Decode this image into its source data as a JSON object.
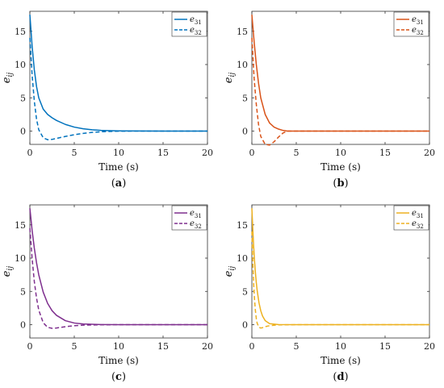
{
  "chart_data": [
    {
      "type": "line",
      "caption": "(a)",
      "caption_letter": "a",
      "xlabel": "Time (s)",
      "ylabel_base": "e",
      "ylabel_sub": "ij",
      "xlim": [
        0,
        20
      ],
      "ylim": [
        -2,
        18
      ],
      "xticks": [
        0,
        5,
        10,
        15,
        20
      ],
      "yticks": [
        0,
        5,
        10,
        15
      ],
      "legend_position": "top-right",
      "color": "#0072BD",
      "series": [
        {
          "name": "e31",
          "name_base": "e",
          "name_sub": "31",
          "style": "solid",
          "x": [
            0,
            0.25,
            0.5,
            0.75,
            1,
            1.5,
            2,
            2.5,
            3,
            4,
            5,
            6,
            7,
            8,
            10,
            12,
            15,
            20
          ],
          "y": [
            17.5,
            12.8,
            9.2,
            6.7,
            5.0,
            3.3,
            2.5,
            2.0,
            1.6,
            1.0,
            0.6,
            0.35,
            0.2,
            0.1,
            0.03,
            0.01,
            0,
            0
          ]
        },
        {
          "name": "e32",
          "name_base": "e",
          "name_sub": "32",
          "style": "dashed",
          "x": [
            0,
            0.25,
            0.5,
            0.75,
            1,
            1.5,
            2,
            2.5,
            3,
            4,
            5,
            6,
            7,
            8,
            10,
            12,
            15,
            20
          ],
          "y": [
            14.0,
            8.5,
            4.5,
            1.8,
            0.2,
            -1.0,
            -1.3,
            -1.25,
            -1.1,
            -0.8,
            -0.55,
            -0.35,
            -0.2,
            -0.1,
            -0.02,
            0,
            0,
            0
          ]
        }
      ]
    },
    {
      "type": "line",
      "caption": "(b)",
      "caption_letter": "b",
      "xlabel": "Time (s)",
      "ylabel_base": "e",
      "ylabel_sub": "ij",
      "xlim": [
        0,
        20
      ],
      "ylim": [
        -2,
        18
      ],
      "xticks": [
        0,
        5,
        10,
        15,
        20
      ],
      "yticks": [
        0,
        5,
        10,
        15
      ],
      "legend_position": "top-right",
      "color": "#D95319",
      "series": [
        {
          "name": "e31",
          "name_base": "e",
          "name_sub": "31",
          "style": "solid",
          "x": [
            0,
            0.25,
            0.5,
            0.75,
            1,
            1.5,
            2,
            2.5,
            3,
            3.5,
            4,
            5,
            10,
            15,
            20
          ],
          "y": [
            17.5,
            13.5,
            10.0,
            7.2,
            5.0,
            2.5,
            1.2,
            0.6,
            0.3,
            0.1,
            0,
            0,
            0,
            0,
            0
          ]
        },
        {
          "name": "e32",
          "name_base": "e",
          "name_sub": "32",
          "style": "dashed",
          "x": [
            0,
            0.25,
            0.5,
            0.75,
            1,
            1.5,
            2,
            2.5,
            3,
            3.5,
            4,
            5,
            10,
            20
          ],
          "y": [
            14.0,
            8.0,
            4.0,
            1.0,
            -0.8,
            -2.0,
            -2.1,
            -1.6,
            -0.9,
            -0.3,
            0,
            0,
            0,
            0
          ]
        }
      ]
    },
    {
      "type": "line",
      "caption": "(c)",
      "caption_letter": "c",
      "xlabel": "Time (s)",
      "ylabel_base": "e",
      "ylabel_sub": "ij",
      "xlim": [
        0,
        20
      ],
      "ylim": [
        -2,
        18
      ],
      "xticks": [
        0,
        5,
        10,
        15,
        20
      ],
      "yticks": [
        0,
        5,
        10,
        15
      ],
      "legend_position": "top-right",
      "color": "#7E2F8E",
      "series": [
        {
          "name": "e31",
          "name_base": "e",
          "name_sub": "31",
          "style": "solid",
          "x": [
            0,
            0.25,
            0.5,
            0.75,
            1,
            1.5,
            2,
            2.5,
            3,
            4,
            5,
            6,
            8,
            10,
            15,
            20
          ],
          "y": [
            17.5,
            14.2,
            11.5,
            9.3,
            7.5,
            4.9,
            3.2,
            2.1,
            1.4,
            0.6,
            0.25,
            0.1,
            0.02,
            0,
            0,
            0
          ]
        },
        {
          "name": "e32",
          "name_base": "e",
          "name_sub": "32",
          "style": "dashed",
          "x": [
            0,
            0.25,
            0.5,
            0.75,
            1,
            1.5,
            2,
            2.5,
            3,
            4,
            5,
            6,
            8,
            10,
            15,
            20
          ],
          "y": [
            14.5,
            10.0,
            6.5,
            4.0,
            2.2,
            0.3,
            -0.4,
            -0.55,
            -0.5,
            -0.3,
            -0.15,
            -0.07,
            -0.02,
            0,
            0,
            0
          ]
        }
      ]
    },
    {
      "type": "line",
      "caption": "(d)",
      "caption_letter": "d",
      "xlabel": "Time (s)",
      "ylabel_base": "e",
      "ylabel_sub": "ij",
      "xlim": [
        0,
        20
      ],
      "ylim": [
        -2,
        18
      ],
      "xticks": [
        0,
        5,
        10,
        15,
        20
      ],
      "yticks": [
        0,
        5,
        10,
        15
      ],
      "legend_position": "top-right",
      "color": "#EDB120",
      "series": [
        {
          "name": "e31",
          "name_base": "e",
          "name_sub": "31",
          "style": "solid",
          "x": [
            0,
            0.1,
            0.2,
            0.3,
            0.4,
            0.5,
            0.6,
            0.8,
            1.0,
            1.2,
            1.5,
            2,
            3,
            5,
            20
          ],
          "y": [
            17.5,
            14.5,
            11.8,
            9.6,
            7.8,
            6.3,
            5.1,
            3.3,
            2.1,
            1.3,
            0.6,
            0.15,
            0.02,
            0,
            0
          ]
        },
        {
          "name": "e32",
          "name_base": "e",
          "name_sub": "32",
          "style": "dashed",
          "x": [
            0,
            0.1,
            0.2,
            0.3,
            0.4,
            0.5,
            0.6,
            0.8,
            1.0,
            1.2,
            1.5,
            2,
            3,
            5,
            20
          ],
          "y": [
            14.0,
            9.5,
            6.2,
            3.8,
            2.1,
            0.9,
            0.2,
            -0.4,
            -0.5,
            -0.45,
            -0.3,
            -0.15,
            -0.03,
            0,
            0
          ]
        }
      ]
    }
  ]
}
